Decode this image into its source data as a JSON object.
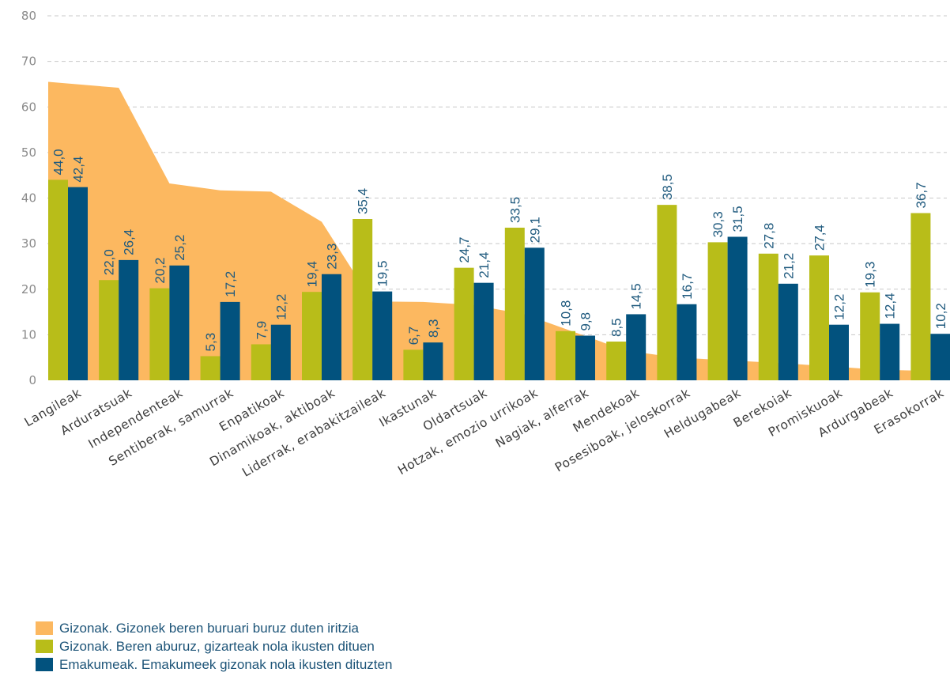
{
  "chart_data": {
    "type": "bar",
    "categories": [
      "Langileak",
      "Arduratsuak",
      "Independenteak",
      "Sentiberak, samurrak",
      "Enpatikoak",
      "Dinamikoak, aktiboak",
      "Liderrak, erabakitzaileak",
      "Ikastunak",
      "Oldartsuak",
      "Hotzak, emozio urrikoak",
      "Nagiak, alferrak",
      "Mendekoak",
      "Posesiboak, jeloskorrak",
      "Heldugabeak",
      "Berekoiak",
      "Promiskuoak",
      "Ardurgabeak",
      "Erasokorrak"
    ],
    "series": [
      {
        "name": "Gizonak. Gizonek beren buruari buruz duten iritzia",
        "kind": "area",
        "color": "#fcb860",
        "values": [
          65.5,
          64.2,
          43.2,
          41.7,
          41.4,
          34.8,
          17.3,
          17.2,
          16.5,
          14.5,
          10.5,
          6.5,
          5.0,
          4.4,
          3.8,
          3.1,
          2.3,
          2.0
        ]
      },
      {
        "name": "Gizonak. Beren aburuz, gizarteak nola ikusten dituen",
        "kind": "bar",
        "color": "#b8bd19",
        "values": [
          44.0,
          22.0,
          20.2,
          5.3,
          7.9,
          19.4,
          35.4,
          6.7,
          24.7,
          33.5,
          10.8,
          8.5,
          38.5,
          30.3,
          27.8,
          27.4,
          19.3,
          36.7
        ],
        "labels": [
          "44,0",
          "22,0",
          "20,2",
          "5,3",
          "7,9",
          "19,4",
          "35,4",
          "6,7",
          "24,7",
          "33,5",
          "10,8",
          "8,5",
          "38,5",
          "30,3",
          "27,8",
          "27,4",
          "19,3",
          "36,7"
        ]
      },
      {
        "name": "Emakumeak. Emakumeek gizonak nola ikusten dituzten",
        "kind": "bar",
        "color": "#02527e",
        "values": [
          42.4,
          26.4,
          25.2,
          17.2,
          12.2,
          23.3,
          19.5,
          8.3,
          21.4,
          29.1,
          9.8,
          14.5,
          16.7,
          31.5,
          21.2,
          12.2,
          12.4,
          10.2
        ],
        "labels": [
          "42,4",
          "26,4",
          "25,2",
          "17,2",
          "12,2",
          "23,3",
          "19,5",
          "8,3",
          "21,4",
          "29,1",
          "9,8",
          "14,5",
          "16,7",
          "31,5",
          "21,2",
          "12,2",
          "12,4",
          "10,2"
        ]
      }
    ],
    "ylim": [
      0,
      80
    ],
    "yticks": [
      "0",
      "10",
      "20",
      "30",
      "40",
      "50",
      "60",
      "70",
      "80"
    ],
    "grid": true,
    "legend_position": "bottom-left"
  },
  "legend": {
    "items": [
      {
        "label": "Gizonak. Gizonek beren buruari buruz duten iritzia",
        "color": "#fcb860"
      },
      {
        "label": "Gizonak. Beren aburuz, gizarteak nola ikusten dituen",
        "color": "#b8bd19"
      },
      {
        "label": "Emakumeak. Emakumeek gizonak nola ikusten dituzten",
        "color": "#02527e"
      }
    ]
  }
}
